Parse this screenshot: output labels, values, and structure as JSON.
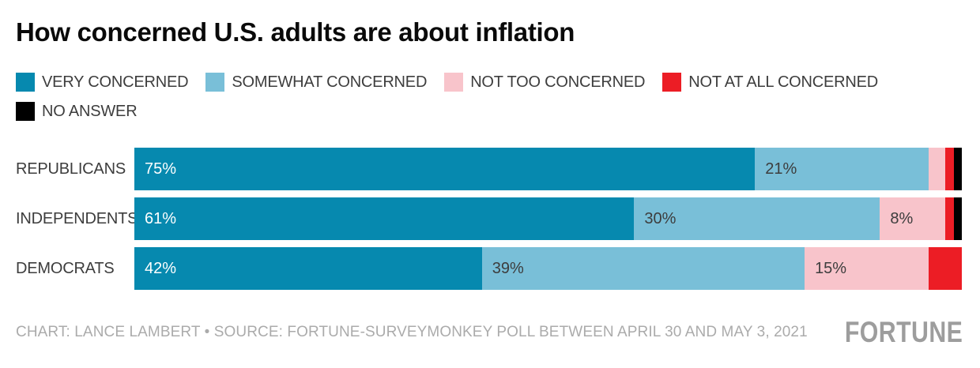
{
  "title": "How concerned U.S. adults are about inflation",
  "colors": {
    "very_concerned": "#0689AF",
    "somewhat_concerned": "#79BFD8",
    "not_too_concerned": "#F8C4CB",
    "not_at_all_concerned": "#EC1D25",
    "no_answer": "#000000",
    "title_text": "#0a0a0a",
    "label_text": "#3d3d3d",
    "footer_text": "#ababab",
    "logo_text": "#9d9d9d",
    "background": "#ffffff"
  },
  "legend": {
    "rows": [
      [
        0,
        1,
        2,
        3
      ],
      [
        4
      ]
    ]
  },
  "chart_data": {
    "type": "bar",
    "orientation": "horizontal",
    "stacked": true,
    "title": "How concerned U.S. adults are about inflation",
    "xlabel": "",
    "ylabel": "",
    "xlim": [
      0,
      100
    ],
    "grid": false,
    "legend_position": "top",
    "value_suffix": "%",
    "label_threshold_pct": 5,
    "categories": [
      "REPUBLICANS",
      "INDEPENDENTS",
      "DEMOCRATS"
    ],
    "series": [
      {
        "name": "VERY CONCERNED",
        "color": "#0689AF",
        "label_color": "#ffffff",
        "values": [
          75,
          61,
          42
        ]
      },
      {
        "name": "SOMEWHAT CONCERNED",
        "color": "#79BFD8",
        "label_color": "#3d3d3d",
        "values": [
          21,
          30,
          39
        ]
      },
      {
        "name": "NOT TOO CONCERNED",
        "color": "#F8C4CB",
        "label_color": "#3d3d3d",
        "values": [
          2,
          8,
          15
        ]
      },
      {
        "name": "NOT AT ALL CONCERNED",
        "color": "#EC1D25",
        "label_color": "#ffffff",
        "values": [
          1,
          1,
          4
        ]
      },
      {
        "name": "NO ANSWER",
        "color": "#000000",
        "label_color": "#ffffff",
        "values": [
          1,
          1,
          0
        ]
      }
    ]
  },
  "footer": {
    "credit": "CHART: LANCE LAMBERT • SOURCE: FORTUNE-SURVEYMONKEY POLL BETWEEN APRIL 30 AND MAY 3, 2021",
    "logo": "FORTUNE"
  }
}
